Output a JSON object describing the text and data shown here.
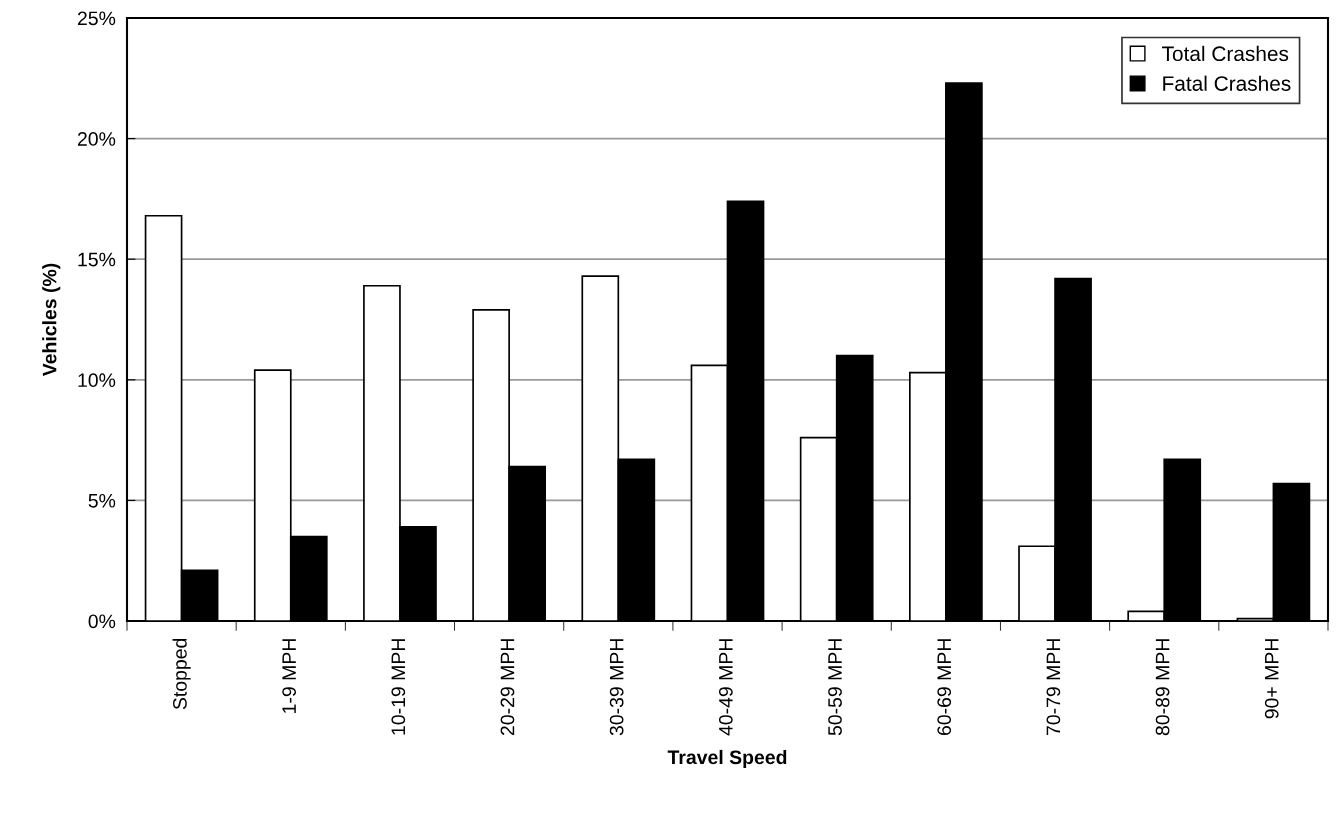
{
  "chart_data": {
    "type": "bar",
    "xlabel": "Travel Speed",
    "ylabel": "Vehicles (%)",
    "categories": [
      "Stopped",
      "1-9 MPH",
      "10-19 MPH",
      "20-29 MPH",
      "30-39 MPH",
      "40-49 MPH",
      "50-59 MPH",
      "60-69 MPH",
      "70-79 MPH",
      "80-89 MPH",
      "90+ MPH"
    ],
    "series": [
      {
        "name": "Total Crashes",
        "color": "#ffffff",
        "values": [
          16.8,
          10.4,
          13.9,
          12.9,
          14.3,
          10.6,
          7.6,
          10.3,
          3.1,
          0.4,
          0.1
        ]
      },
      {
        "name": "Fatal Crashes",
        "color": "#000000",
        "values": [
          2.1,
          3.5,
          3.9,
          6.4,
          6.7,
          17.4,
          11.0,
          22.3,
          14.2,
          6.7,
          5.7
        ]
      }
    ],
    "ylim": [
      0,
      25
    ],
    "yticks": [
      {
        "value": 0,
        "label": "0%"
      },
      {
        "value": 5,
        "label": "5%"
      },
      {
        "value": 10,
        "label": "10%"
      },
      {
        "value": 15,
        "label": "15%"
      },
      {
        "value": 20,
        "label": "20%"
      },
      {
        "value": 25,
        "label": "25%"
      }
    ],
    "grid": "y",
    "legend": "top right"
  }
}
